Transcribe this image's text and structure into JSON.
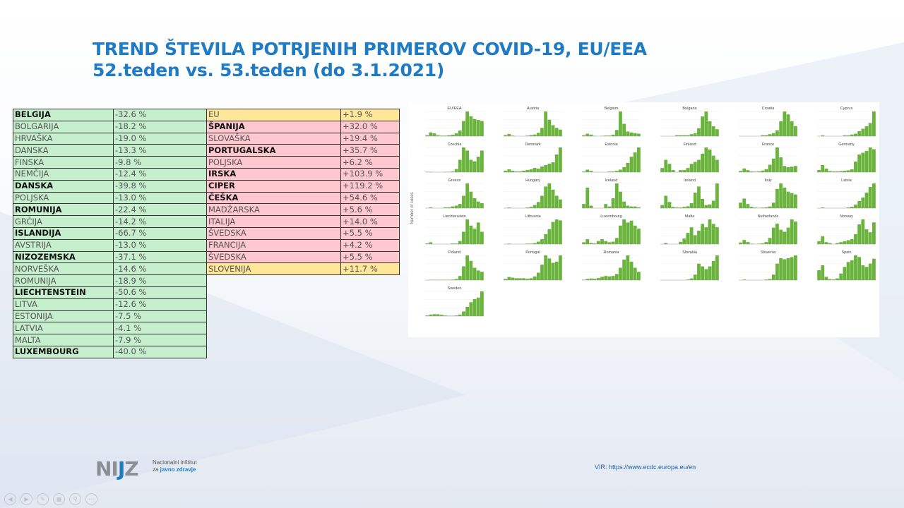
{
  "title": {
    "line1": "TREND ŠTEVILA POTRJENIH PRIMEROV COVID-19, EU/EEA",
    "line2": "52.teden vs. 53.teden (do 3.1.2021)"
  },
  "colors": {
    "title": "#1f7cc4",
    "decrease": "#c6efce",
    "increase": "#ffc7ce",
    "highlight": "#ffe699",
    "bars": "#6ab33c"
  },
  "left_table": [
    {
      "country": "BELGIJA",
      "change": "-32.6 %",
      "bold": true
    },
    {
      "country": "BOLGARIJA",
      "change": "-18.2 %",
      "bold": false
    },
    {
      "country": "HRVAŠKA",
      "change": "-19.0 %",
      "bold": false
    },
    {
      "country": "DANSKA",
      "change": "-13.3 %",
      "bold": false
    },
    {
      "country": "FINSKA",
      "change": "-9.8 %",
      "bold": false
    },
    {
      "country": "NEMČIJA",
      "change": "-12.4 %",
      "bold": false
    },
    {
      "country": "DANSKA",
      "change": "-39.8 %",
      "bold": true
    },
    {
      "country": "POLJSKA",
      "change": "-13.0 %",
      "bold": false
    },
    {
      "country": "ROMUNIJA",
      "change": "-22.4 %",
      "bold": true
    },
    {
      "country": "GRČIJA",
      "change": "-14.2 %",
      "bold": false
    },
    {
      "country": "ISLANDIJA",
      "change": "-66.7 %",
      "bold": true
    },
    {
      "country": "AVSTRIJA",
      "change": "-13.0 %",
      "bold": false
    },
    {
      "country": "NIZOZEMSKA",
      "change": "-37.1 %",
      "bold": true
    },
    {
      "country": "NORVEŠKA",
      "change": "-14.6 %",
      "bold": false
    },
    {
      "country": "ROMUNIJA",
      "change": "-18.9 %",
      "bold": false
    },
    {
      "country": "LIECHTENSTEIN",
      "change": "-50.6 %",
      "bold": true
    },
    {
      "country": "LITVA",
      "change": "-12.6 %",
      "bold": false
    },
    {
      "country": "ESTONIJA",
      "change": "-7.5 %",
      "bold": false
    },
    {
      "country": "LATVIA",
      "change": "-4.1 %",
      "bold": false
    },
    {
      "country": "MALTA",
      "change": "-7.9 %",
      "bold": false
    },
    {
      "country": "LUXEMBOURG",
      "change": "-40.0 %",
      "bold": true
    }
  ],
  "right_table": [
    {
      "country": "EU",
      "change": "+1.9 %",
      "bold": false,
      "kind": "yel"
    },
    {
      "country": "ŠPANIJA",
      "change": "+32.0 %",
      "bold": true,
      "kind": "pink"
    },
    {
      "country": "SLOVAŠKA",
      "change": "+19.4 %",
      "bold": false,
      "kind": "pink"
    },
    {
      "country": "PORTUGALSKA",
      "change": "+35.7 %",
      "bold": true,
      "kind": "pink"
    },
    {
      "country": "POLJSKA",
      "change": "+6.2 %",
      "bold": false,
      "kind": "pink"
    },
    {
      "country": "IRSKA",
      "change": "+103.9 %",
      "bold": true,
      "kind": "pink"
    },
    {
      "country": "CIPER",
      "change": "+119.2 %",
      "bold": true,
      "kind": "pink"
    },
    {
      "country": "ČEŠKA",
      "change": "+54.6 %",
      "bold": true,
      "kind": "pink"
    },
    {
      "country": "MADŽARSKA",
      "change": "+5.6 %",
      "bold": false,
      "kind": "pink"
    },
    {
      "country": "ITALIJA",
      "change": "+14.0 %",
      "bold": false,
      "kind": "pink"
    },
    {
      "country": "ŠVEDSKA",
      "change": "+5.5 %",
      "bold": false,
      "kind": "pink"
    },
    {
      "country": "FRANCIJA",
      "change": "+4.2 %",
      "bold": false,
      "kind": "pink"
    },
    {
      "country": "ŠVEDSKA",
      "change": "+5.5 %",
      "bold": false,
      "kind": "pink"
    },
    {
      "country": "SLOVENIJA",
      "change": "+11.7 %",
      "bold": false,
      "kind": "yel"
    }
  ],
  "chart_data": {
    "type": "bar",
    "ylabel": "Number of cases",
    "panels": [
      {
        "name": "EU/EEA",
        "values": [
          5,
          20,
          15,
          5,
          3,
          3,
          5,
          8,
          15,
          30,
          80,
          130,
          105,
          90,
          85,
          80
        ]
      },
      {
        "name": "Austria",
        "values": [
          2,
          4,
          1,
          0,
          0,
          0,
          1,
          2,
          3,
          6,
          15,
          45,
          30,
          20,
          15,
          12
        ]
      },
      {
        "name": "Belgium",
        "values": [
          3,
          8,
          5,
          1,
          0,
          1,
          2,
          2,
          5,
          20,
          80,
          40,
          15,
          12,
          10,
          8
        ]
      },
      {
        "name": "Bulgaria",
        "values": [
          0,
          0,
          0,
          0,
          1,
          1,
          1,
          1,
          2,
          3,
          8,
          20,
          25,
          15,
          10,
          7
        ]
      },
      {
        "name": "Croatia",
        "values": [
          0,
          0,
          0,
          0,
          0,
          0,
          1,
          1,
          2,
          3,
          6,
          15,
          25,
          22,
          15,
          10
        ]
      },
      {
        "name": "Cyprus",
        "values": [
          0,
          1,
          0,
          0,
          0,
          0,
          0,
          1,
          1,
          2,
          3,
          6,
          9,
          12,
          16,
          30
        ]
      },
      {
        "name": "Czechia",
        "values": [
          1,
          1,
          0,
          0,
          0,
          1,
          1,
          2,
          10,
          40,
          80,
          70,
          40,
          35,
          50,
          70
        ]
      },
      {
        "name": "Denmark",
        "values": [
          2,
          4,
          2,
          1,
          1,
          2,
          3,
          4,
          6,
          5,
          8,
          10,
          12,
          14,
          25,
          35
        ]
      },
      {
        "name": "Estonia",
        "values": [
          1,
          4,
          2,
          0,
          0,
          0,
          0,
          1,
          1,
          2,
          4,
          8,
          15,
          25,
          32,
          40
        ]
      },
      {
        "name": "Finland",
        "values": [
          2,
          6,
          4,
          1,
          0,
          1,
          1,
          2,
          4,
          5,
          6,
          9,
          12,
          11,
          8,
          6
        ]
      },
      {
        "name": "France",
        "values": [
          5,
          15,
          8,
          3,
          2,
          3,
          6,
          12,
          30,
          55,
          100,
          60,
          25,
          20,
          22,
          25
        ]
      },
      {
        "name": "Germany",
        "values": [
          6,
          20,
          10,
          3,
          2,
          2,
          3,
          4,
          5,
          8,
          30,
          50,
          55,
          60,
          70,
          65
        ]
      },
      {
        "name": "Greece",
        "values": [
          0,
          1,
          0,
          0,
          0,
          1,
          1,
          2,
          3,
          5,
          15,
          30,
          20,
          12,
          8,
          6
        ]
      },
      {
        "name": "Hungary",
        "values": [
          0,
          1,
          0,
          0,
          0,
          0,
          1,
          2,
          5,
          10,
          20,
          35,
          40,
          30,
          20,
          14
        ]
      },
      {
        "name": "Iceland",
        "values": [
          5,
          25,
          3,
          0,
          0,
          0,
          5,
          2,
          12,
          30,
          20,
          8,
          3,
          2,
          2,
          1
        ]
      },
      {
        "name": "Ireland",
        "values": [
          5,
          20,
          10,
          2,
          1,
          1,
          2,
          3,
          8,
          25,
          35,
          15,
          5,
          6,
          12,
          40
        ]
      },
      {
        "name": "Italy",
        "values": [
          20,
          35,
          15,
          5,
          2,
          1,
          2,
          3,
          6,
          20,
          70,
          90,
          75,
          60,
          55,
          50
        ]
      },
      {
        "name": "Latvia",
        "values": [
          0,
          1,
          0,
          0,
          0,
          0,
          0,
          0,
          1,
          2,
          5,
          10,
          15,
          22,
          30,
          35
        ]
      },
      {
        "name": "Liechtenstein",
        "values": [
          1,
          3,
          0,
          0,
          0,
          0,
          0,
          1,
          1,
          5,
          20,
          40,
          30,
          25,
          35,
          20
        ]
      },
      {
        "name": "Lithuania",
        "values": [
          0,
          1,
          0,
          0,
          0,
          0,
          1,
          1,
          2,
          5,
          10,
          20,
          30,
          45,
          50,
          48
        ]
      },
      {
        "name": "Luxembourg",
        "values": [
          3,
          8,
          2,
          1,
          5,
          8,
          5,
          3,
          4,
          10,
          30,
          40,
          35,
          38,
          30,
          25
        ]
      },
      {
        "name": "Malta",
        "values": [
          0,
          1,
          0,
          0,
          0,
          2,
          5,
          10,
          15,
          8,
          12,
          18,
          15,
          22,
          18,
          15
        ]
      },
      {
        "name": "Netherlands",
        "values": [
          4,
          10,
          5,
          1,
          0,
          1,
          2,
          5,
          15,
          40,
          50,
          35,
          30,
          40,
          60,
          55
        ]
      },
      {
        "name": "Norway",
        "values": [
          3,
          8,
          2,
          1,
          0,
          1,
          2,
          3,
          4,
          5,
          10,
          20,
          25,
          15,
          12,
          22
        ]
      },
      {
        "name": "Poland",
        "values": [
          0,
          1,
          1,
          1,
          1,
          1,
          1,
          2,
          4,
          15,
          50,
          90,
          70,
          45,
          35,
          30
        ]
      },
      {
        "name": "Portugal",
        "values": [
          2,
          5,
          4,
          3,
          3,
          3,
          2,
          3,
          6,
          12,
          25,
          40,
          35,
          28,
          30,
          40
        ]
      },
      {
        "name": "Romania",
        "values": [
          1,
          3,
          4,
          3,
          5,
          8,
          10,
          9,
          10,
          15,
          30,
          50,
          60,
          45,
          30,
          20
        ]
      },
      {
        "name": "Slovakia",
        "values": [
          0,
          0,
          0,
          0,
          0,
          0,
          0,
          1,
          3,
          10,
          30,
          25,
          20,
          25,
          35,
          45
        ]
      },
      {
        "name": "Slovenia",
        "values": [
          0,
          1,
          0,
          0,
          0,
          0,
          0,
          1,
          2,
          10,
          30,
          40,
          38,
          40,
          42,
          45
        ]
      },
      {
        "name": "Spain",
        "values": [
          30,
          45,
          10,
          3,
          2,
          5,
          20,
          40,
          55,
          60,
          75,
          70,
          45,
          40,
          50,
          65
        ]
      },
      {
        "name": "Sweden",
        "values": [
          2,
          5,
          6,
          6,
          4,
          2,
          1,
          1,
          2,
          5,
          15,
          30,
          45,
          55,
          60,
          80
        ]
      }
    ]
  },
  "footer": {
    "logo": "NIJZ",
    "org_line1": "Nacionalni inštitut",
    "org_line2_prefix": "za ",
    "org_line2_bold": "javno zdravje",
    "source": "VIR: https://www.ecdc.europa.eu/en"
  },
  "nav_icons": [
    "previous-icon",
    "next-icon",
    "pen-icon",
    "slides-icon",
    "zoom-icon",
    "more-icon"
  ]
}
